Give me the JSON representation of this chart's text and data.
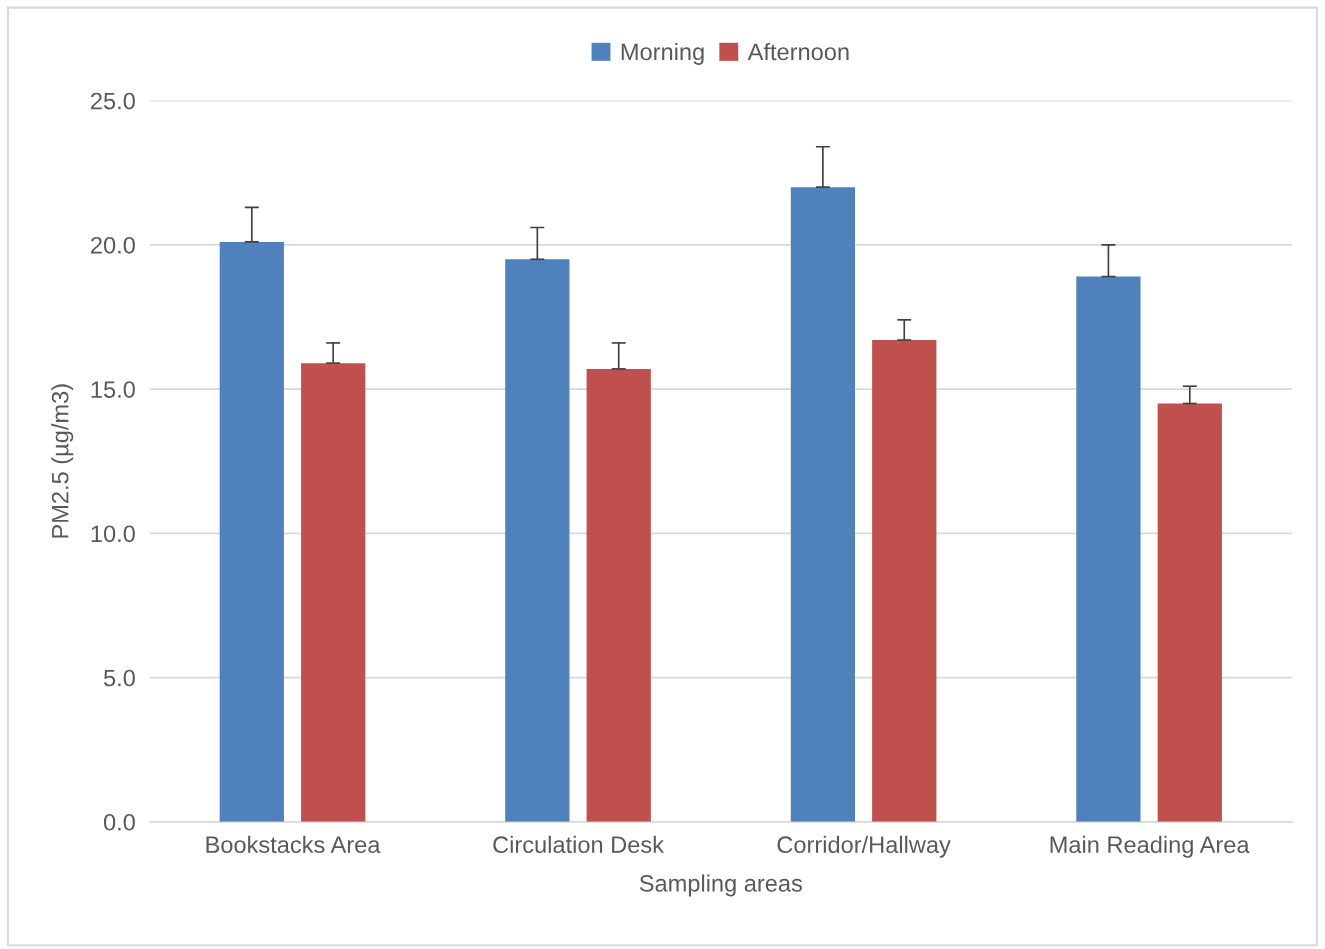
{
  "chart_data": {
    "type": "bar",
    "xlabel": "Sampling areas",
    "ylabel": "PM2.5 (µg/m3)",
    "categories": [
      "Bookstacks Area",
      "Circulation Desk",
      "Corridor/Hallway",
      "Main Reading Area"
    ],
    "series": [
      {
        "name": "Morning",
        "color": "#4f81bd",
        "values": [
          20.1,
          19.5,
          22.0,
          18.9
        ],
        "errors": [
          [
            20.1,
            21.3
          ],
          [
            19.5,
            20.6
          ],
          [
            22.0,
            23.4
          ],
          [
            18.9,
            20.0
          ]
        ]
      },
      {
        "name": "Afternoon",
        "color": "#c0504d",
        "values": [
          15.9,
          15.7,
          16.7,
          14.5
        ],
        "errors": [
          [
            15.9,
            16.6
          ],
          [
            15.7,
            16.6
          ],
          [
            16.7,
            17.4
          ],
          [
            14.5,
            15.1
          ]
        ]
      }
    ],
    "ylim": [
      0,
      25
    ],
    "yticks": [
      {
        "value": 0,
        "label": "0.0"
      },
      {
        "value": 5,
        "label": "5.0"
      },
      {
        "value": 10,
        "label": "10.0"
      },
      {
        "value": 15,
        "label": "15.0"
      },
      {
        "value": 20,
        "label": "20.0"
      },
      {
        "value": 25,
        "label": "25.0"
      }
    ],
    "grid": "y",
    "legend": "top"
  }
}
